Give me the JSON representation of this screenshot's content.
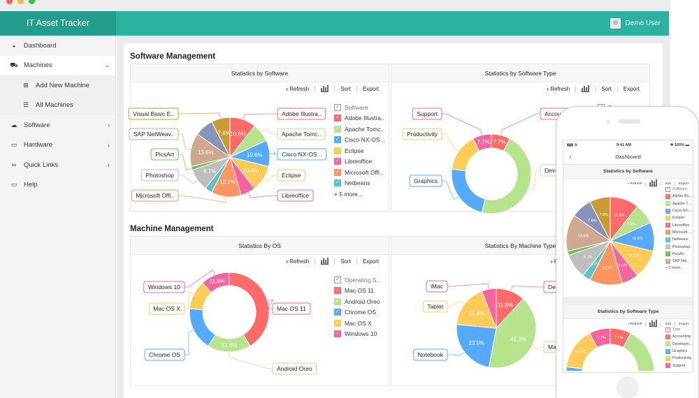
{
  "app": {
    "title": "IT Asset Tracker",
    "user": "Demo User"
  },
  "sidebar": {
    "items": [
      {
        "label": "Dashboard",
        "icon": "dashboard-icon"
      },
      {
        "label": "Machines",
        "icon": "car-icon",
        "expanded": true
      },
      {
        "label": "Add New Machine",
        "icon": "plus-square-icon",
        "sub": true
      },
      {
        "label": "All Machines",
        "icon": "database-icon",
        "sub": true
      },
      {
        "label": "Software",
        "icon": "cloud-icon"
      },
      {
        "label": "Hardware",
        "icon": "laptop-icon"
      },
      {
        "label": "Quick Links",
        "icon": "link-icon"
      },
      {
        "label": "Help",
        "icon": "monitor-icon"
      }
    ]
  },
  "sections": {
    "software": "Software Management",
    "machine": "Machine Management"
  },
  "toolbar": {
    "refresh": "Refresh",
    "sort": "Sort",
    "export": "Export"
  },
  "charts": [
    {
      "title": "Statistics by Software",
      "legend_title": "Software",
      "legend_visible": 7,
      "more": "+ 5 more...",
      "type": "pie",
      "slices": [
        {
          "name": "Adobe Illustra..",
          "value": 10.6,
          "color": "#ff6b6b",
          "label_visible": true,
          "callout": true
        },
        {
          "name": "Apache Tomc..",
          "value": 7.6,
          "color": "#b8e38d",
          "label_visible": false,
          "callout": true
        },
        {
          "name": "Cisco NX-OS ..",
          "value": 10.6,
          "color": "#56aafb",
          "label_visible": true,
          "callout": true
        },
        {
          "name": "Eclipse",
          "value": 10.6,
          "color": "#fdcb57",
          "label_visible": true,
          "callout": true
        },
        {
          "name": "Libreoffice",
          "value": 6.1,
          "color": "#f4649d",
          "label_visible": false,
          "callout": true
        },
        {
          "name": "Microsoft Offi..",
          "value": 12.1,
          "color": "#fd9561",
          "label_visible": true,
          "callout": true
        },
        {
          "name": "Netbeans",
          "value": 3.0,
          "color": "#5cc3c6",
          "label_visible": false,
          "callout": false
        },
        {
          "name": "Photoshop",
          "value": 9.1,
          "color": "#bebebe",
          "label_visible": true,
          "callout": true
        },
        {
          "name": "PicsArt",
          "value": 1.5,
          "color": "#6cc04c",
          "label_visible": false,
          "callout": true
        },
        {
          "name": "SAP NetWeav..",
          "value": 13.6,
          "color": "#cfa892",
          "label_visible": true,
          "callout": true
        },
        {
          "name": "",
          "value": 7.6,
          "color": "#8794b9",
          "label_visible": false,
          "callout": false
        },
        {
          "name": "Visual Basic E..",
          "value": 7.6,
          "color": "#c99c36",
          "label_visible": true,
          "callout": true
        }
      ]
    },
    {
      "title": "Statistics by Software Type",
      "legend_title": "Type",
      "legend_visible": 5,
      "more": "",
      "type": "donut",
      "slices": [
        {
          "name": "Accounting",
          "value": 7.7,
          "color": "#ff6b6b",
          "label_visible": true,
          "callout": true
        },
        {
          "name": "Development",
          "value": 46.2,
          "color": "#b8e38d",
          "label_visible": false,
          "callout": true
        },
        {
          "name": "Graphics",
          "value": 23.1,
          "color": "#56aafb",
          "label_visible": false,
          "callout": true
        },
        {
          "name": "Productivity",
          "value": 15.4,
          "color": "#fdcb57",
          "label_visible": false,
          "callout": true
        },
        {
          "name": "Support",
          "value": 7.7,
          "color": "#f4649d",
          "label_visible": true,
          "callout": true
        }
      ]
    },
    {
      "title": "Statistics By OS",
      "legend_title": "Operating S...",
      "legend_visible": 5,
      "more": "",
      "type": "donut",
      "slices": [
        {
          "name": "Mac OS 11",
          "value": 41.2,
          "color": "#ff6b6b",
          "label_visible": false,
          "callout": true
        },
        {
          "name": "Android Oreo",
          "value": 17.6,
          "color": "#b8e38d",
          "label_visible": true,
          "callout": true
        },
        {
          "name": "Chrome OS",
          "value": 17.6,
          "color": "#56aafb",
          "label_visible": false,
          "callout": true
        },
        {
          "name": "Mac OS X",
          "value": 11.8,
          "color": "#fdcb57",
          "label_visible": false,
          "callout": true
        },
        {
          "name": "Windows 10",
          "value": 11.8,
          "color": "#f4649d",
          "label_visible": true,
          "callout": true
        }
      ]
    },
    {
      "title": "Statistics By Machine Type",
      "legend_title": "Type",
      "legend_visible": 5,
      "more": "",
      "type": "pie",
      "slices": [
        {
          "name": "Desktop",
          "value": 11.8,
          "color": "#ff6b6b",
          "label_visible": true,
          "callout": true
        },
        {
          "name": "Mac",
          "value": 41.2,
          "color": "#b8e38d",
          "label_visible": true,
          "callout": true
        },
        {
          "name": "Notebook",
          "value": 23.5,
          "color": "#56aafb",
          "label_visible": true,
          "callout": true
        },
        {
          "name": "Tablet",
          "value": 17.6,
          "color": "#fdcb57",
          "label_visible": true,
          "callout": true
        },
        {
          "name": "iMac",
          "value": 5.9,
          "color": "#f4649d",
          "label_visible": false,
          "callout": true
        }
      ]
    }
  ],
  "phone": {
    "time": "9:41 AM",
    "battery": "100%",
    "nav_title": "Dashboard",
    "software_more": "+ 2 more...",
    "software_legend_visible": 10
  }
}
